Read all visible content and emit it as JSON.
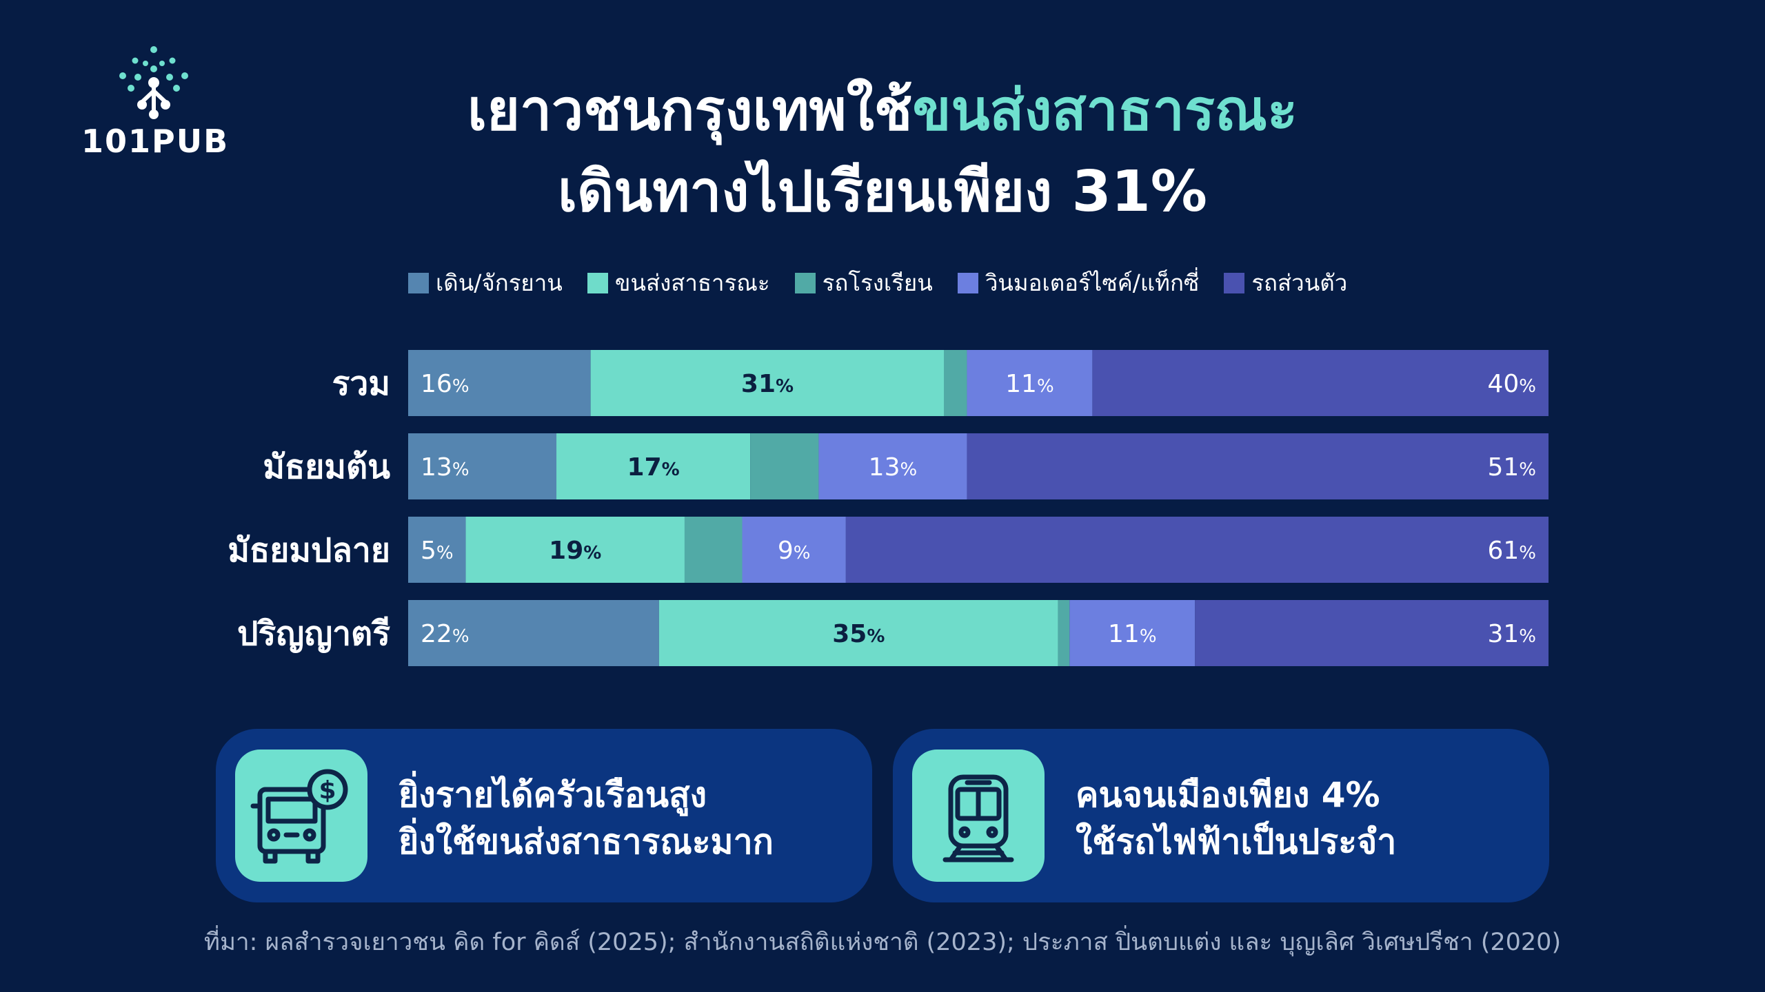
{
  "brand": {
    "logo_text": "101PUB"
  },
  "title": {
    "line1_plain": "เยาวชนกรุงเทพใช้",
    "line1_highlight": "ขนส่งสาธารณะ",
    "line2": "เดินทางไปเรียนเพียง 31%"
  },
  "legend": [
    {
      "label": "เดิน/จักรยาน",
      "color": "#5585b0"
    },
    {
      "label": "ขนส่งสาธารณะ",
      "color": "#6fdcca"
    },
    {
      "label": "รถโรงเรียน",
      "color": "#51aaa6"
    },
    {
      "label": "วินมอเตอร์ไซค์/แท็กซี่",
      "color": "#6c7fe0"
    },
    {
      "label": "รถส่วนตัว",
      "color": "#4a52b0"
    }
  ],
  "chart_data": {
    "type": "bar",
    "orientation": "horizontal",
    "stacked": true,
    "categories": [
      "รวม",
      "มัธยมต้น",
      "มัธยมปลาย",
      "ปริญญาตรี"
    ],
    "series": [
      {
        "name": "เดิน/จักรยาน",
        "color": "#5585b0",
        "values": [
          16,
          13,
          5,
          22
        ],
        "labels": [
          "16",
          "13",
          "5",
          "22"
        ]
      },
      {
        "name": "ขนส่งสาธารณะ",
        "color": "#6fdcca",
        "values": [
          31,
          17,
          19,
          35
        ],
        "labels": [
          "31",
          "17",
          "19",
          "35"
        ]
      },
      {
        "name": "รถโรงเรียน",
        "color": "#51aaa6",
        "values": [
          2,
          6,
          5,
          1
        ],
        "labels": [
          "",
          "",
          "",
          ""
        ]
      },
      {
        "name": "วินมอเตอร์ไซค์/แท็กซี่",
        "color": "#6c7fe0",
        "values": [
          11,
          13,
          9,
          11
        ],
        "labels": [
          "11",
          "13",
          "9",
          "11"
        ]
      },
      {
        "name": "รถส่วนตัว",
        "color": "#4a52b0",
        "values": [
          40,
          51,
          61,
          31
        ],
        "labels": [
          "40",
          "51",
          "61",
          "31"
        ]
      }
    ],
    "value_suffix": "%",
    "xlim": [
      0,
      100
    ]
  },
  "cards": [
    {
      "icon": "bus-money-icon",
      "line1": "ยิ่งรายได้ครัวเรือนสูง",
      "line2": "ยิ่งใช้ขนส่งสาธารณะมาก"
    },
    {
      "icon": "train-icon",
      "line1": "คนจนเมืองเพียง 4%",
      "line2": "ใช้รถไฟฟ้าเป็นประจำ"
    }
  ],
  "source": "ที่มา: ผลสำรวจเยาวชน คิด for คิดส์ (2025); สำนักงานสถิติแห่งชาติ (2023); ประภาส ปิ่นตบแต่ง และ บุญเลิศ วิเศษปรีชา (2020)"
}
